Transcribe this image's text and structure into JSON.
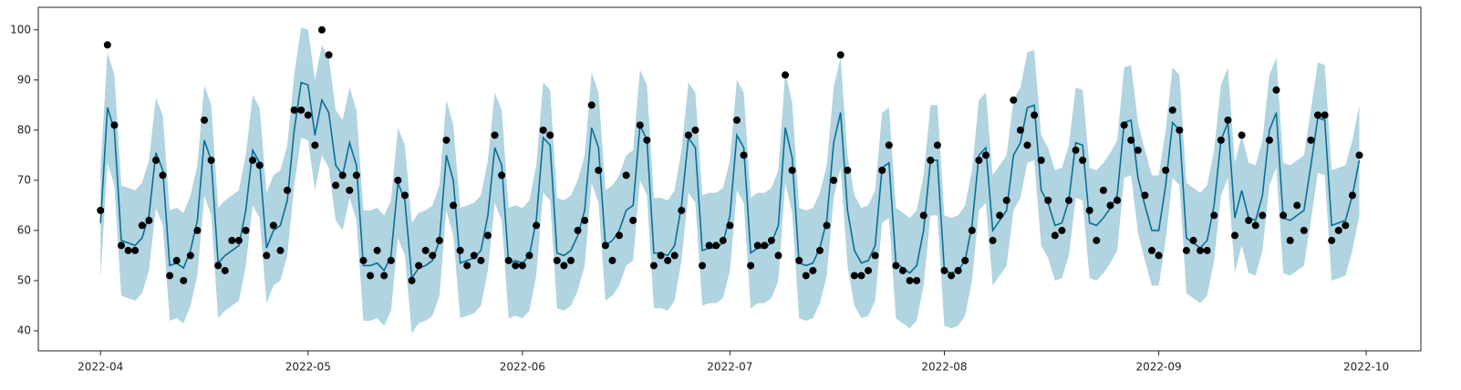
{
  "chart_data": {
    "type": "forecast",
    "xlim": [
      -9,
      190.9
    ],
    "ylim": [
      36,
      104.5
    ],
    "xticks": [
      {
        "value": 0,
        "label": "2022-04"
      },
      {
        "value": 30,
        "label": "2022-05"
      },
      {
        "value": 61,
        "label": "2022-06"
      },
      {
        "value": 91,
        "label": "2022-07"
      },
      {
        "value": 122,
        "label": "2022-08"
      },
      {
        "value": 153,
        "label": "2022-09"
      },
      {
        "value": 183,
        "label": "2022-10"
      }
    ],
    "yticks": [
      40,
      50,
      60,
      70,
      80,
      90,
      100
    ],
    "grid": false,
    "x": [
      0,
      1,
      2,
      3,
      4,
      5,
      6,
      7,
      8,
      9,
      10,
      11,
      12,
      13,
      14,
      15,
      16,
      17,
      18,
      19,
      20,
      21,
      22,
      23,
      24,
      25,
      26,
      27,
      28,
      29,
      30,
      31,
      32,
      33,
      34,
      35,
      36,
      37,
      38,
      39,
      40,
      41,
      42,
      43,
      44,
      45,
      46,
      47,
      48,
      49,
      50,
      51,
      52,
      53,
      54,
      55,
      56,
      57,
      58,
      59,
      60,
      61,
      62,
      63,
      64,
      65,
      66,
      67,
      68,
      69,
      70,
      71,
      72,
      73,
      74,
      75,
      76,
      77,
      78,
      79,
      80,
      81,
      82,
      83,
      84,
      85,
      86,
      87,
      88,
      89,
      90,
      91,
      92,
      93,
      94,
      95,
      96,
      97,
      98,
      99,
      100,
      101,
      102,
      103,
      104,
      105,
      106,
      107,
      108,
      109,
      110,
      111,
      112,
      113,
      114,
      115,
      116,
      117,
      118,
      119,
      120,
      121,
      122,
      123,
      124,
      125,
      126,
      127,
      128,
      129,
      130,
      131,
      132,
      133,
      134,
      135,
      136,
      137,
      138,
      139,
      140,
      141,
      142,
      143,
      144,
      145,
      146,
      147,
      148,
      149,
      150,
      151,
      152,
      153,
      154,
      155,
      156,
      157,
      158,
      159,
      160,
      161,
      162,
      163,
      164,
      165,
      166,
      167,
      168,
      169,
      170,
      171,
      172,
      173,
      174,
      175,
      176,
      177,
      178,
      179,
      180,
      181,
      182
    ],
    "series": [
      {
        "type": "band",
        "color": "#b0d4e0",
        "upper": [
          72.5,
          95.5,
          91,
          69,
          68.5,
          68,
          69.5,
          74,
          86.5,
          83,
          64,
          64.5,
          63.5,
          67,
          73,
          89,
          85,
          64.5,
          66,
          67,
          68,
          75,
          87,
          84.5,
          67.5,
          71,
          72,
          77,
          91,
          100.5,
          100,
          90,
          97,
          94.5,
          84,
          82,
          88.5,
          84,
          64,
          64,
          64.5,
          63,
          66,
          80.5,
          77,
          61.5,
          63.5,
          64,
          65,
          69,
          86,
          81,
          64.5,
          65,
          65.5,
          67,
          74,
          87.5,
          84,
          64.5,
          65,
          64.5,
          66,
          73,
          89.5,
          88,
          66.5,
          66,
          67,
          70,
          75,
          91.5,
          87.5,
          68,
          69,
          71,
          75,
          76,
          92,
          89,
          66.5,
          66.5,
          66,
          68,
          76,
          89.5,
          87.5,
          67,
          67.5,
          67.5,
          68.5,
          74,
          90,
          87.5,
          66.5,
          67.5,
          67.5,
          68.5,
          72,
          91.5,
          85.5,
          64.5,
          64,
          64.5,
          67.5,
          73,
          88.5,
          94.5,
          75,
          67,
          64.5,
          65,
          68,
          83.5,
          84.5,
          64.5,
          63.5,
          62.5,
          64,
          71,
          85,
          85,
          63,
          62.5,
          63,
          65,
          72,
          86,
          87.5,
          71,
          73,
          75,
          86,
          88.5,
          95.5,
          96,
          79,
          76.5,
          72,
          72.5,
          77,
          88.5,
          88,
          72.5,
          72,
          73.5,
          75.5,
          78,
          92.5,
          93,
          81.5,
          76,
          71,
          71,
          80,
          92.5,
          91,
          69.5,
          68.5,
          67.5,
          69,
          76,
          89,
          92.5,
          73.5,
          79,
          73.5,
          73,
          78,
          91,
          94.5,
          73.5,
          73,
          74,
          75,
          84,
          93.5,
          93,
          72,
          72.5,
          73,
          78,
          85
        ],
        "lower": [
          50.5,
          73.5,
          69,
          47,
          46.5,
          46,
          47.5,
          52,
          64.5,
          61,
          42,
          42.5,
          41.5,
          45,
          51,
          67,
          63,
          42.5,
          44,
          45,
          46,
          53,
          65,
          62.5,
          45.5,
          49,
          50,
          55,
          69,
          78.5,
          78,
          68,
          75,
          72.5,
          62,
          60,
          66.5,
          62,
          42,
          42,
          42.5,
          41,
          44,
          58.5,
          55,
          39.5,
          41.5,
          42,
          43,
          47,
          64,
          59,
          42.5,
          43,
          43.5,
          45,
          52,
          65.5,
          62,
          42.5,
          43,
          42.5,
          44,
          51,
          67.5,
          66,
          44.5,
          44,
          45,
          48,
          53,
          69.5,
          65.5,
          46,
          47,
          49,
          53,
          54,
          70,
          67,
          44.5,
          44.5,
          44,
          46,
          54,
          67.5,
          65.5,
          45,
          45.5,
          45.5,
          46.5,
          52,
          68,
          65.5,
          44.5,
          45.5,
          45.5,
          46.5,
          50,
          69.5,
          63.5,
          42.5,
          42,
          42.5,
          45.5,
          51,
          66.5,
          72.5,
          53,
          45,
          42.5,
          43,
          46,
          61.5,
          62.5,
          42.5,
          41.5,
          40.5,
          42,
          49,
          63,
          63,
          41,
          40.5,
          41,
          43,
          50,
          64,
          65.5,
          49,
          51,
          53,
          64,
          66.5,
          73.5,
          74,
          57,
          54.5,
          50,
          50.5,
          55,
          66.5,
          66,
          50.5,
          50,
          51.5,
          53.5,
          56,
          70.5,
          71,
          59.5,
          54,
          49,
          49,
          58,
          70.5,
          69,
          47.5,
          46.5,
          45.5,
          47,
          54,
          67,
          70.5,
          51.5,
          57,
          51.5,
          51,
          56,
          69,
          72.5,
          51.5,
          51,
          52,
          53,
          62,
          71.5,
          71,
          50,
          50.5,
          51,
          56,
          63
        ]
      },
      {
        "type": "line",
        "color": "#0a6f96",
        "values": [
          61.5,
          84.5,
          80,
          58,
          57.5,
          57,
          58.5,
          63,
          75.5,
          72,
          53,
          53.5,
          52.5,
          56,
          62,
          78,
          74,
          53.5,
          55,
          56,
          57,
          64,
          76,
          73.5,
          56.5,
          60,
          61,
          66,
          80,
          89.5,
          89,
          79,
          86,
          83.5,
          73,
          71,
          77.5,
          73,
          53,
          53,
          53.5,
          52,
          55,
          69.5,
          66,
          50.5,
          52.5,
          53,
          54,
          58,
          75,
          70,
          53.5,
          54,
          54.5,
          56,
          63,
          76.5,
          73,
          53.5,
          54,
          53.5,
          55,
          62,
          78.5,
          77,
          55.5,
          55,
          56,
          59,
          64,
          80.5,
          76.5,
          57,
          58,
          60,
          64,
          65,
          81,
          78,
          55.5,
          55.5,
          55,
          57,
          65,
          78.5,
          76.5,
          56,
          56.5,
          56.5,
          57.5,
          63,
          79,
          76.5,
          55.5,
          56.5,
          56.5,
          57.5,
          61,
          80.5,
          74.5,
          53.5,
          53,
          53.5,
          56.5,
          62,
          77.5,
          83.5,
          64,
          56,
          53.5,
          54,
          57,
          72.5,
          73.5,
          53.5,
          52.5,
          51.5,
          53,
          60,
          74,
          74,
          52,
          51.5,
          52,
          54,
          61,
          75,
          76.5,
          60,
          62,
          64,
          75,
          77.5,
          84.5,
          85,
          68,
          65.5,
          61,
          61.5,
          66,
          77.5,
          77,
          61.5,
          61,
          62.5,
          64.5,
          67,
          81.5,
          82,
          70.5,
          65,
          60,
          60,
          69,
          81.5,
          80,
          58.5,
          57.5,
          56.5,
          58,
          65,
          78,
          81.5,
          62.5,
          68,
          62.5,
          62,
          67,
          80,
          83.5,
          62.5,
          62,
          63,
          64,
          73,
          82.5,
          82,
          61,
          61.5,
          62,
          67,
          74
        ]
      },
      {
        "type": "scatter",
        "color": "#000000",
        "values": [
          64,
          97,
          81,
          57,
          56,
          56,
          61,
          62,
          74,
          71,
          51,
          54,
          50,
          55,
          60,
          82,
          74,
          53,
          52,
          58,
          58,
          60,
          74,
          73,
          55,
          61,
          56,
          68,
          84,
          84,
          83,
          77,
          100,
          95,
          69,
          71,
          68,
          71,
          54,
          51,
          56,
          51,
          54,
          70,
          67,
          50,
          53,
          56,
          55,
          58,
          78,
          65,
          56,
          53,
          55,
          54,
          59,
          79,
          71,
          54,
          53,
          53,
          55,
          61,
          80,
          79,
          54,
          53,
          54,
          60,
          62,
          85,
          72,
          57,
          54,
          59,
          71,
          62,
          81,
          78,
          53,
          55,
          54,
          55,
          64,
          79,
          80,
          53,
          57,
          57,
          58,
          61,
          82,
          75,
          53,
          57,
          57,
          58,
          55,
          91,
          72,
          54,
          51,
          52,
          56,
          61,
          70,
          95,
          72,
          51,
          51,
          52,
          55,
          72,
          77,
          53,
          52,
          50,
          50,
          63,
          74,
          77,
          52,
          51,
          52,
          54,
          60,
          74,
          75,
          58,
          63,
          66,
          86,
          80,
          77,
          83,
          74,
          66,
          59,
          60,
          66,
          76,
          74,
          64,
          58,
          68,
          65,
          66,
          81,
          78,
          76,
          67,
          56,
          55,
          72,
          84,
          80,
          56,
          58,
          56,
          56,
          63,
          78,
          82,
          59,
          79,
          62,
          61,
          63,
          78,
          88,
          63,
          58,
          65,
          60,
          78,
          83,
          83,
          58,
          60,
          61,
          67,
          75
        ]
      }
    ]
  }
}
